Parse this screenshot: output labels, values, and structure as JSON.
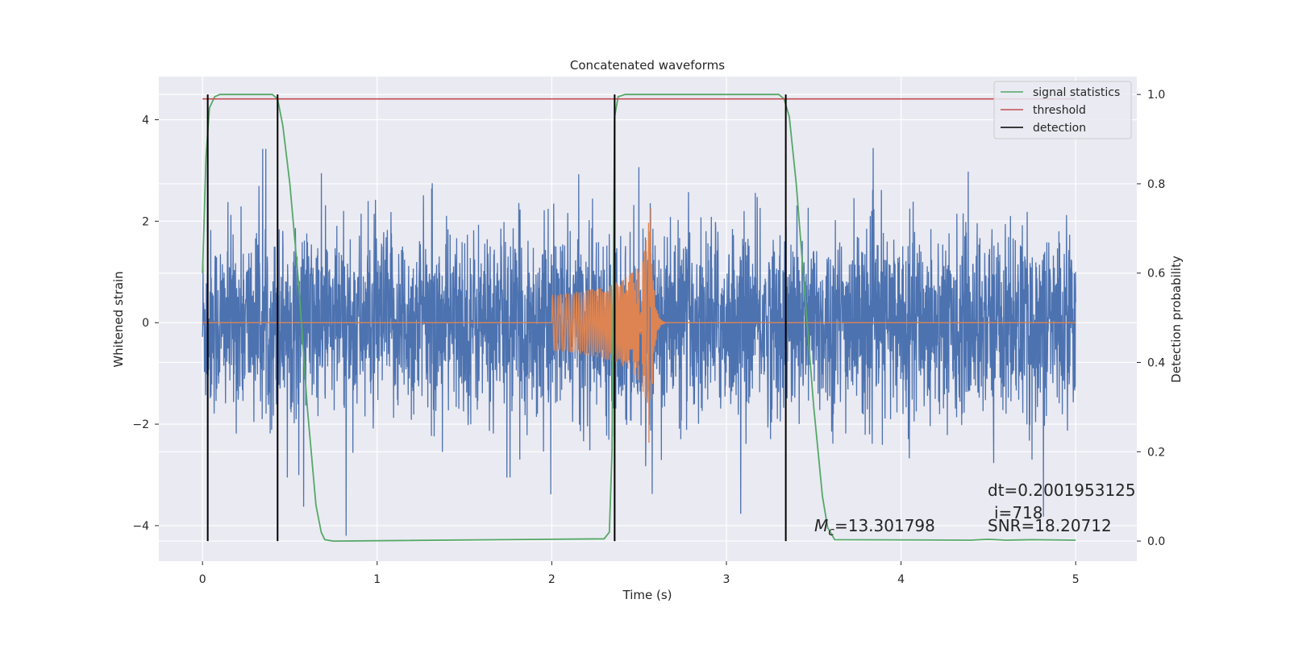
{
  "chart_data": {
    "type": "line",
    "title": "Concatenated waveforms",
    "xlabel": "Time (s)",
    "ylabel": "Whitened strain",
    "y2label": "Detection probability",
    "xlim": [
      -0.25,
      5.35
    ],
    "ylim": [
      -4.7,
      4.85
    ],
    "y2lim": [
      -0.045,
      1.04
    ],
    "xticks": [
      "0",
      "1",
      "2",
      "3",
      "4",
      "5"
    ],
    "yticks": [
      "4",
      "2",
      "0",
      "−2",
      "−4"
    ],
    "y2ticks": [
      "1.0",
      "0.8",
      "0.6",
      "0.4",
      "0.2",
      "0.0"
    ],
    "grid": true,
    "legend_position": "upper-right",
    "legend": [
      "signal statistics",
      "threshold",
      "detection"
    ],
    "annotations": {
      "dt": "dt=0.2001953125",
      "i": "i=718",
      "mc_symbol": "M",
      "mc_subscript": "c",
      "mc_value": "=13.301798",
      "snr": "SNR=18.20712"
    },
    "colors": {
      "strain": "#4c72b0",
      "waveform": "#dd8452",
      "signal_statistics": "#55a868",
      "threshold": "#c44e52",
      "detection": "#000000",
      "axes_bg": "#eaeaf2",
      "grid": "#ffffff"
    },
    "series": [
      {
        "name": "signal statistics",
        "axis": "right",
        "x": [
          0.0,
          0.02,
          0.04,
          0.07,
          0.1,
          0.4,
          0.43,
          0.46,
          0.5,
          0.55,
          0.6,
          0.65,
          0.68,
          0.7,
          0.75,
          2.3,
          2.33,
          2.345,
          2.36,
          2.38,
          2.42,
          3.3,
          3.33,
          3.36,
          3.4,
          3.45,
          3.5,
          3.55,
          3.58,
          3.62,
          4.4,
          4.5,
          4.6,
          4.75,
          5.0
        ],
        "y": [
          0.6,
          0.86,
          0.97,
          0.995,
          1.0,
          1.0,
          0.99,
          0.93,
          0.8,
          0.58,
          0.3,
          0.08,
          0.02,
          0.003,
          0.0,
          0.005,
          0.02,
          0.2,
          0.95,
          0.995,
          1.0,
          1.0,
          0.99,
          0.95,
          0.8,
          0.55,
          0.3,
          0.1,
          0.03,
          0.003,
          0.002,
          0.004,
          0.002,
          0.003,
          0.002
        ]
      },
      {
        "name": "threshold",
        "axis": "right",
        "x": [
          0.0,
          5.0
        ],
        "y": [
          0.99,
          0.99
        ]
      },
      {
        "name": "detection",
        "axis": "right",
        "x": [
          0.03,
          0.43,
          2.36,
          3.34
        ],
        "y": [
          1.0,
          1.0,
          1.0,
          1.0
        ]
      }
    ]
  }
}
